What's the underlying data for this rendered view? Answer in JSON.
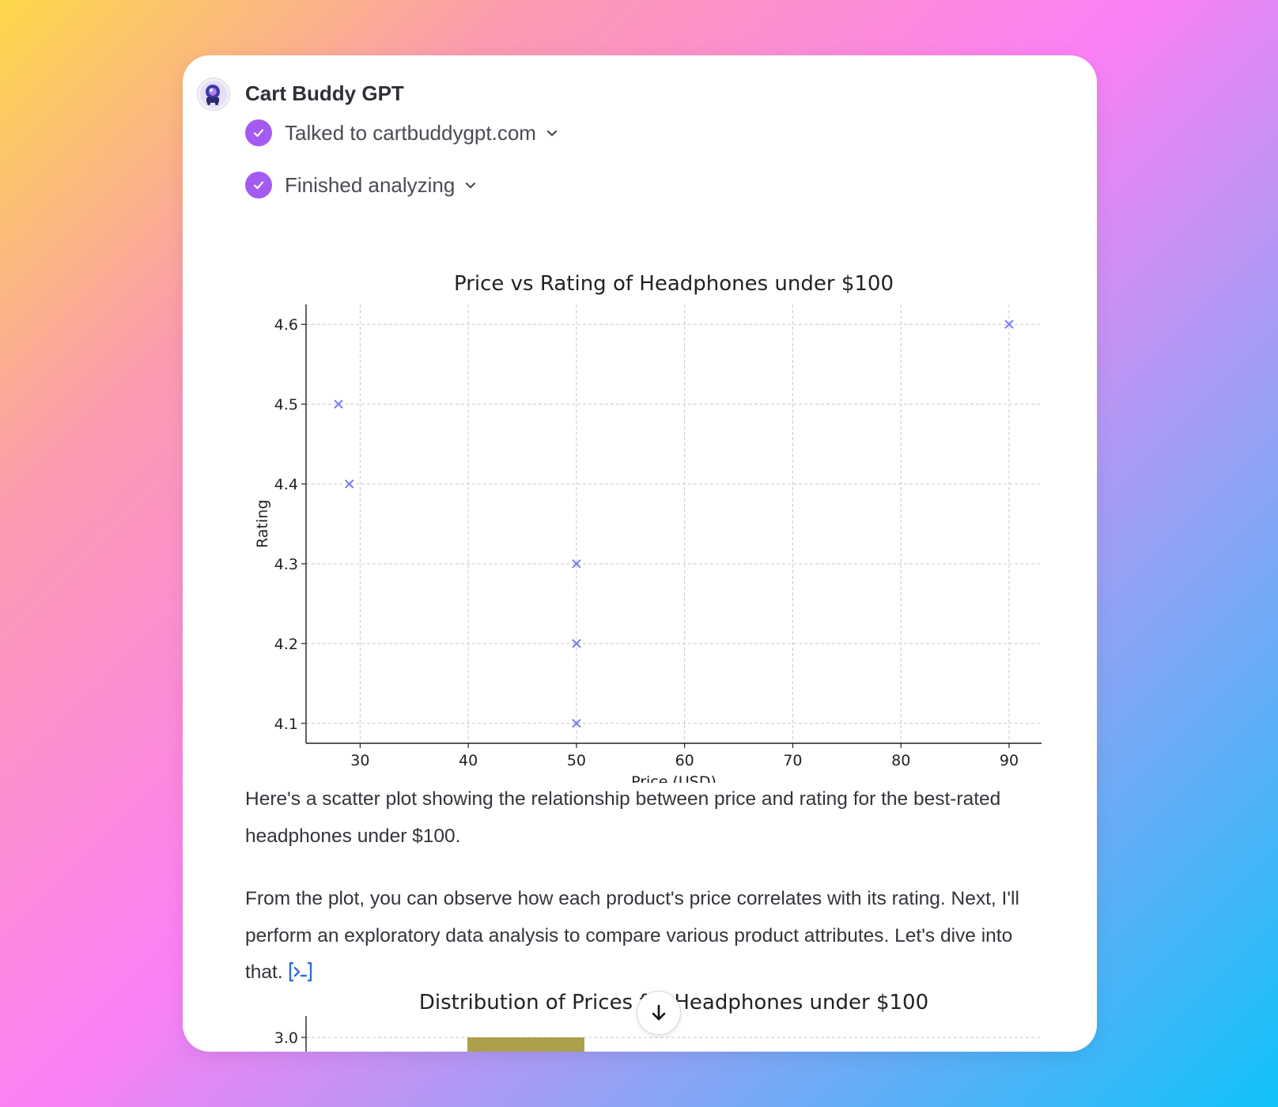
{
  "gpt": {
    "name": "Cart Buddy GPT",
    "avatar_icon": "cart-buddy-logo"
  },
  "steps": [
    {
      "label": "Talked to cartbuddygpt.com",
      "icon": "check-icon",
      "toggle_icon": "chevron-down-icon"
    },
    {
      "label": "Finished analyzing",
      "icon": "check-icon",
      "toggle_icon": "chevron-down-icon"
    }
  ],
  "message": {
    "paragraph1": "Here's a scatter plot showing the relationship between price and rating for the best-rated headphones under $100.",
    "paragraph2": "From the plot, you can observe how each product's price correlates with its rating. Next, I'll perform an exploratory data analysis to compare various product attributes. Let's dive into that.",
    "code_link_icon": "code-interpreter-icon"
  },
  "colors": {
    "accent": "#a35bf0",
    "marker": "#7b7bf0",
    "bar": "#aca04a",
    "link": "#2f6fd6"
  },
  "chart_data": [
    {
      "type": "scatter",
      "title": "Price vs Rating of Headphones under $100",
      "xlabel": "Price (USD)",
      "ylabel": "Rating",
      "x": [
        28,
        29,
        50,
        50,
        50,
        90
      ],
      "y": [
        4.5,
        4.4,
        4.3,
        4.2,
        4.1,
        4.6
      ],
      "xlim": [
        25,
        93
      ],
      "ylim": [
        4.075,
        4.625
      ],
      "xticks": [
        30,
        40,
        50,
        60,
        70,
        80,
        90
      ],
      "yticks": [
        "4.1",
        "4.2",
        "4.3",
        "4.4",
        "4.5",
        "4.6"
      ],
      "marker": "x",
      "grid": true
    },
    {
      "type": "bar",
      "title": "Distribution of Prices for Headphones under $100",
      "yticks": [
        "3.0"
      ],
      "values": [
        3.0
      ],
      "grid": true
    }
  ],
  "scroll_button": {
    "icon": "arrow-down-icon"
  }
}
